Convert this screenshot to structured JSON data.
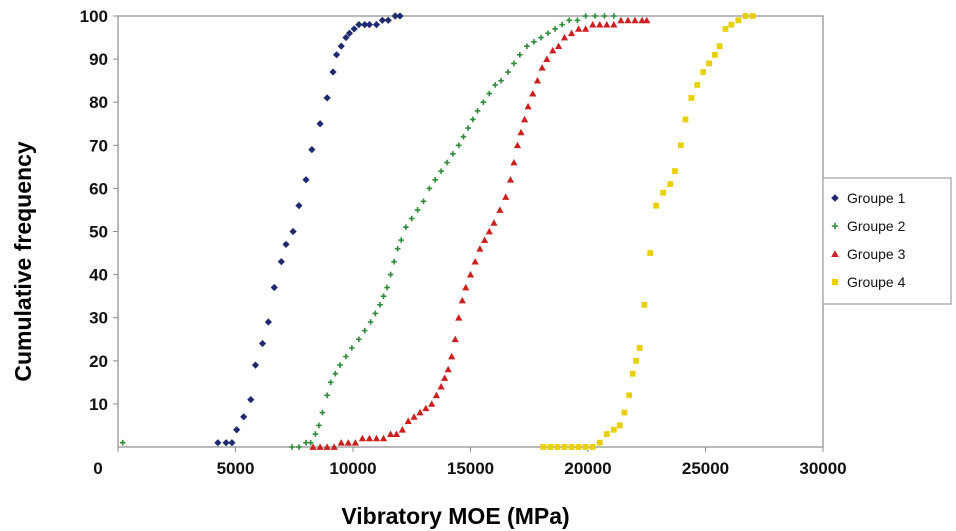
{
  "chart_data": {
    "type": "scatter",
    "title": "",
    "xlabel": "Vibratory MOE (MPa)",
    "ylabel": "Cumulative frequency",
    "xlim": [
      0,
      30000
    ],
    "ylim": [
      0,
      100
    ],
    "xticks": [
      0,
      5000,
      10000,
      15000,
      20000,
      25000,
      30000
    ],
    "xtick_labels": [
      "0",
      "5000",
      "10000",
      "15000",
      "20000",
      "25000",
      "30000"
    ],
    "yticks": [
      10,
      20,
      30,
      40,
      50,
      60,
      70,
      80,
      90,
      100
    ],
    "ytick_labels": [
      "10",
      "20",
      "30",
      "40",
      "50",
      "60",
      "70",
      "80",
      "90",
      "100"
    ],
    "grid": false,
    "legend_position": "right",
    "series": [
      {
        "name": "Groupe 1",
        "marker": "diamond",
        "color": "#1f2a6e",
        "points": [
          [
            4250,
            1
          ],
          [
            4600,
            1
          ],
          [
            4850,
            1
          ],
          [
            5050,
            4
          ],
          [
            5350,
            7
          ],
          [
            5650,
            11
          ],
          [
            5850,
            19
          ],
          [
            6150,
            24
          ],
          [
            6400,
            29
          ],
          [
            6650,
            37
          ],
          [
            6950,
            43
          ],
          [
            7150,
            47
          ],
          [
            7450,
            50
          ],
          [
            7700,
            56
          ],
          [
            8000,
            62
          ],
          [
            8250,
            69
          ],
          [
            8600,
            75
          ],
          [
            8900,
            81
          ],
          [
            9150,
            87
          ],
          [
            9300,
            91
          ],
          [
            9500,
            93
          ],
          [
            9700,
            95
          ],
          [
            9850,
            96
          ],
          [
            10050,
            97
          ],
          [
            10250,
            98
          ],
          [
            10500,
            98
          ],
          [
            10700,
            98
          ],
          [
            11000,
            98
          ],
          [
            11250,
            99
          ],
          [
            11500,
            99
          ],
          [
            11800,
            100
          ],
          [
            12000,
            100
          ]
        ]
      },
      {
        "name": "Groupe 2",
        "marker": "plus",
        "color": "#2e8b3a",
        "points": [
          [
            200,
            1
          ],
          [
            7400,
            0
          ],
          [
            7700,
            0
          ],
          [
            8000,
            1
          ],
          [
            8200,
            1
          ],
          [
            8400,
            3
          ],
          [
            8550,
            5
          ],
          [
            8700,
            8
          ],
          [
            8900,
            12
          ],
          [
            9050,
            15
          ],
          [
            9250,
            17
          ],
          [
            9450,
            19
          ],
          [
            9700,
            21
          ],
          [
            9950,
            23
          ],
          [
            10250,
            25
          ],
          [
            10500,
            27
          ],
          [
            10750,
            29
          ],
          [
            10950,
            31
          ],
          [
            11150,
            33
          ],
          [
            11300,
            35
          ],
          [
            11450,
            37
          ],
          [
            11600,
            40
          ],
          [
            11750,
            43
          ],
          [
            11900,
            46
          ],
          [
            12050,
            48
          ],
          [
            12250,
            51
          ],
          [
            12500,
            53
          ],
          [
            12750,
            55
          ],
          [
            13000,
            57
          ],
          [
            13250,
            60
          ],
          [
            13500,
            62
          ],
          [
            13750,
            64
          ],
          [
            14000,
            66
          ],
          [
            14250,
            68
          ],
          [
            14500,
            70
          ],
          [
            14700,
            72
          ],
          [
            14900,
            74
          ],
          [
            15100,
            76
          ],
          [
            15300,
            78
          ],
          [
            15550,
            80
          ],
          [
            15800,
            82
          ],
          [
            16050,
            84
          ],
          [
            16300,
            85
          ],
          [
            16600,
            87
          ],
          [
            16850,
            89
          ],
          [
            17100,
            91
          ],
          [
            17400,
            93
          ],
          [
            17700,
            94
          ],
          [
            18000,
            95
          ],
          [
            18300,
            96
          ],
          [
            18600,
            97
          ],
          [
            18900,
            98
          ],
          [
            19200,
            99
          ],
          [
            19550,
            99
          ],
          [
            19900,
            100
          ],
          [
            20300,
            100
          ],
          [
            20700,
            100
          ],
          [
            21100,
            100
          ]
        ]
      },
      {
        "name": "Groupe 3",
        "marker": "triangle",
        "color": "#cc1f1f",
        "points": [
          [
            8300,
            0
          ],
          [
            8600,
            0
          ],
          [
            8900,
            0
          ],
          [
            9200,
            0
          ],
          [
            9500,
            1
          ],
          [
            9800,
            1
          ],
          [
            10100,
            1
          ],
          [
            10400,
            2
          ],
          [
            10700,
            2
          ],
          [
            11000,
            2
          ],
          [
            11300,
            2
          ],
          [
            11600,
            3
          ],
          [
            11850,
            3
          ],
          [
            12100,
            4
          ],
          [
            12350,
            6
          ],
          [
            12600,
            7
          ],
          [
            12850,
            8
          ],
          [
            13100,
            9
          ],
          [
            13350,
            10
          ],
          [
            13550,
            12
          ],
          [
            13750,
            14
          ],
          [
            13900,
            16
          ],
          [
            14050,
            18
          ],
          [
            14200,
            21
          ],
          [
            14350,
            25
          ],
          [
            14500,
            30
          ],
          [
            14650,
            34
          ],
          [
            14800,
            37
          ],
          [
            15000,
            40
          ],
          [
            15200,
            43
          ],
          [
            15400,
            46
          ],
          [
            15600,
            48
          ],
          [
            15800,
            50
          ],
          [
            16000,
            52
          ],
          [
            16250,
            55
          ],
          [
            16500,
            58
          ],
          [
            16700,
            62
          ],
          [
            16850,
            66
          ],
          [
            17000,
            70
          ],
          [
            17150,
            73
          ],
          [
            17300,
            76
          ],
          [
            17450,
            79
          ],
          [
            17650,
            82
          ],
          [
            17850,
            85
          ],
          [
            18050,
            88
          ],
          [
            18250,
            90
          ],
          [
            18500,
            92
          ],
          [
            18750,
            93
          ],
          [
            19000,
            95
          ],
          [
            19300,
            96
          ],
          [
            19600,
            97
          ],
          [
            19900,
            97
          ],
          [
            20200,
            98
          ],
          [
            20500,
            98
          ],
          [
            20800,
            98
          ],
          [
            21100,
            98
          ],
          [
            21400,
            99
          ],
          [
            21700,
            99
          ],
          [
            22000,
            99
          ],
          [
            22300,
            99
          ],
          [
            22500,
            99
          ]
        ]
      },
      {
        "name": "Groupe 4",
        "marker": "square",
        "color": "#e8d000",
        "points": [
          [
            18100,
            0
          ],
          [
            18400,
            0
          ],
          [
            18700,
            0
          ],
          [
            19000,
            0
          ],
          [
            19300,
            0
          ],
          [
            19600,
            0
          ],
          [
            19900,
            0
          ],
          [
            20200,
            0
          ],
          [
            20500,
            1
          ],
          [
            20800,
            3
          ],
          [
            21100,
            4
          ],
          [
            21350,
            5
          ],
          [
            21550,
            8
          ],
          [
            21750,
            12
          ],
          [
            21900,
            17
          ],
          [
            22050,
            20
          ],
          [
            22200,
            23
          ],
          [
            22400,
            33
          ],
          [
            22650,
            45
          ],
          [
            22900,
            56
          ],
          [
            23200,
            59
          ],
          [
            23500,
            61
          ],
          [
            23700,
            64
          ],
          [
            23950,
            70
          ],
          [
            24150,
            76
          ],
          [
            24400,
            81
          ],
          [
            24650,
            84
          ],
          [
            24900,
            87
          ],
          [
            25150,
            89
          ],
          [
            25400,
            91
          ],
          [
            25600,
            93
          ],
          [
            25850,
            97
          ],
          [
            26100,
            98
          ],
          [
            26400,
            99
          ],
          [
            26700,
            100
          ],
          [
            27000,
            100
          ]
        ]
      }
    ]
  }
}
